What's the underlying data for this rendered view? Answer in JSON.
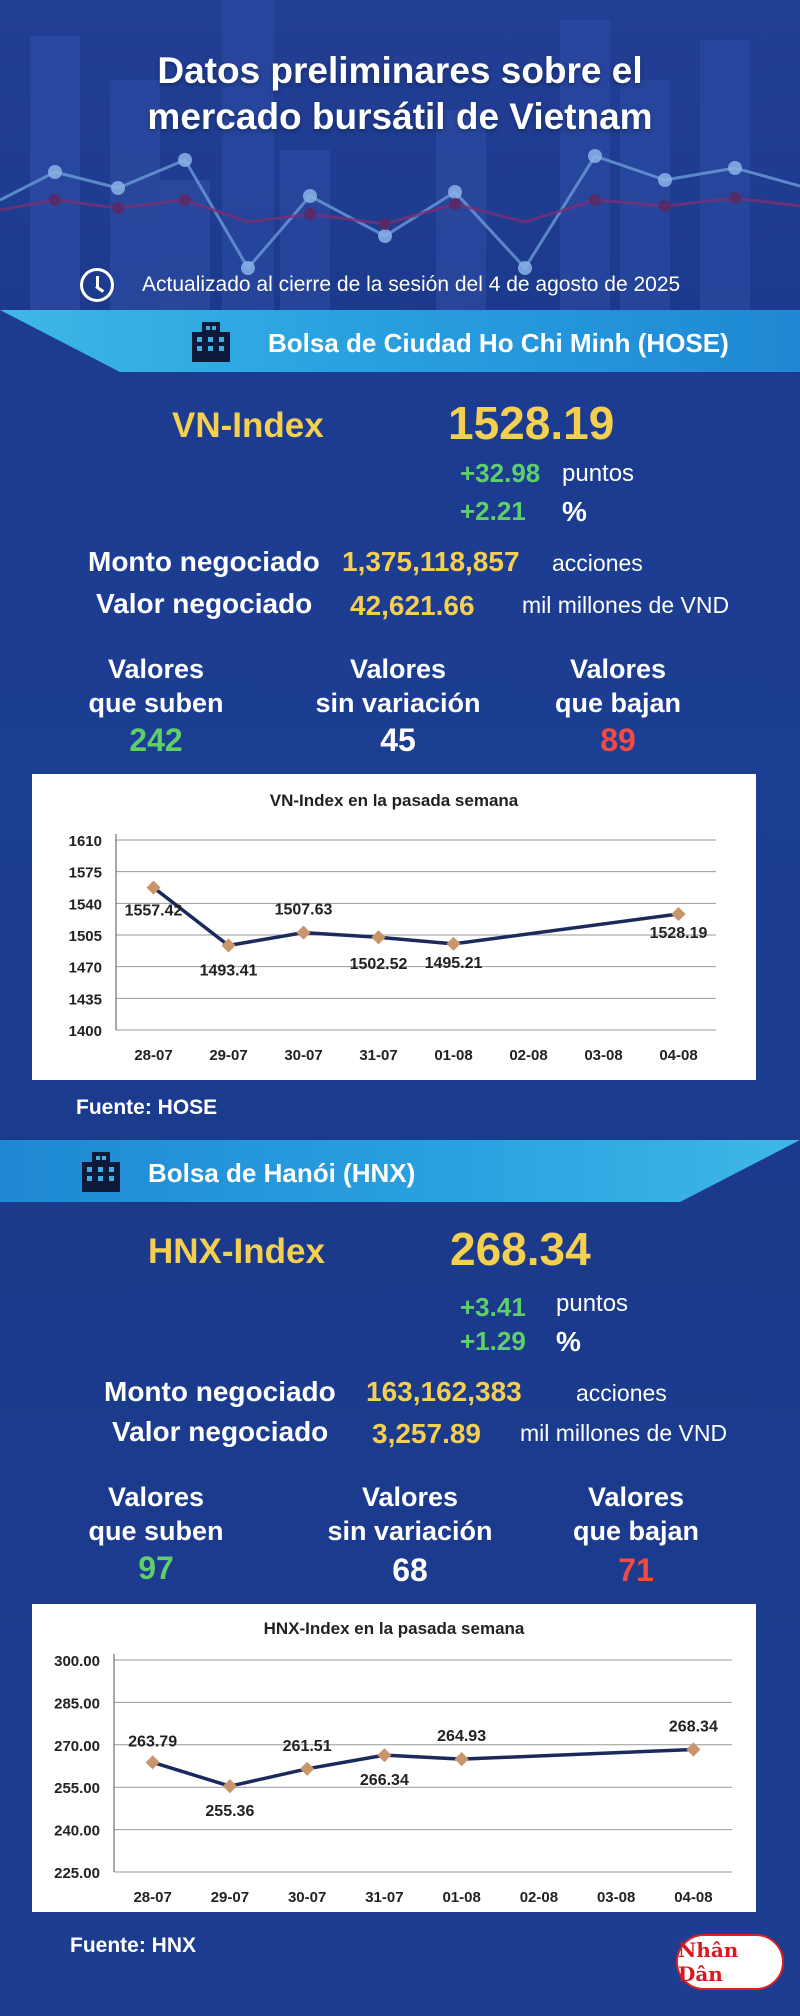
{
  "header": {
    "title_line1": "Datos preliminares sobre el",
    "title_line2": "mercado bursátil de Vietnam",
    "updated": "Actualizado al cierre de la sesión del 4 de agosto de 2025"
  },
  "hose": {
    "band_title": "Bolsa de Ciudad Ho Chi Minh (HOSE)",
    "index_name": "VN-Index",
    "index_value": "1528.19",
    "change_points": "+32.98",
    "points_unit": "puntos",
    "change_pct": "+2.21",
    "pct_unit": "%",
    "volume_label": "Monto negociado",
    "volume_value": "1,375,118,857",
    "volume_unit": "acciones",
    "value_label": "Valor negociado",
    "value_value": "42,621.66",
    "value_unit": "mil millones de VND",
    "up_label_1": "Valores",
    "up_label_2": "que suben",
    "up_count": "242",
    "same_label_1": "Valores",
    "same_label_2": "sin variación",
    "same_count": "45",
    "down_label_1": "Valores",
    "down_label_2": "que bajan",
    "down_count": "89",
    "source": "Fuente: HOSE"
  },
  "hnx": {
    "band_title": "Bolsa de Hanói (HNX)",
    "index_name": "HNX-Index",
    "index_value": "268.34",
    "change_points": "+3.41",
    "points_unit": "puntos",
    "change_pct": "+1.29",
    "pct_unit": "%",
    "volume_label": "Monto negociado",
    "volume_value": "163,162,383",
    "volume_unit": "acciones",
    "value_label": "Valor negociado",
    "value_value": "3,257.89",
    "value_unit": "mil millones de VND",
    "up_label_1": "Valores",
    "up_label_2": "que suben",
    "up_count": "97",
    "same_label_1": "Valores",
    "same_label_2": "sin variación",
    "same_count": "68",
    "down_label_1": "Valores",
    "down_label_2": "que bajan",
    "down_count": "71",
    "source": "Fuente:  HNX"
  },
  "logo_text": "Nhân Dân",
  "colors": {
    "accent_yellow": "#f5cf4f",
    "up_green": "#5fcf6a",
    "down_red": "#f04b45",
    "line_navy": "#1b2a5c",
    "marker": "#c9956a"
  },
  "chart_data": [
    {
      "type": "line",
      "title": "VN-Index en la pasada semana",
      "categories": [
        "28-07",
        "29-07",
        "30-07",
        "31-07",
        "01-08",
        "02-08",
        "03-08",
        "04-08"
      ],
      "series": [
        {
          "values": [
            1557.42,
            1493.41,
            1507.63,
            1502.52,
            1495.21,
            null,
            null,
            1528.19
          ]
        }
      ],
      "labels": [
        "1557.42",
        "1493.41",
        "1507.63",
        "1502.52",
        "1495.21",
        "",
        "",
        "1528.19"
      ],
      "yticks": [
        "1610",
        "1575",
        "1540",
        "1505",
        "1470",
        "1435",
        "1400"
      ],
      "ylim": [
        1400,
        1610
      ],
      "grid": true
    },
    {
      "type": "line",
      "title": "HNX-Index en la pasada semana",
      "categories": [
        "28-07",
        "29-07",
        "30-07",
        "31-07",
        "01-08",
        "02-08",
        "03-08",
        "04-08"
      ],
      "series": [
        {
          "values": [
            263.79,
            255.36,
            261.51,
            266.34,
            264.93,
            null,
            null,
            268.34
          ]
        }
      ],
      "labels": [
        "263.79",
        "255.36",
        "261.51",
        "266.34",
        "264.93",
        "",
        "",
        "268.34"
      ],
      "yticks": [
        "300.00",
        "285.00",
        "270.00",
        "255.00",
        "240.00",
        "225.00"
      ],
      "ylim": [
        225,
        300
      ],
      "grid": true
    }
  ]
}
